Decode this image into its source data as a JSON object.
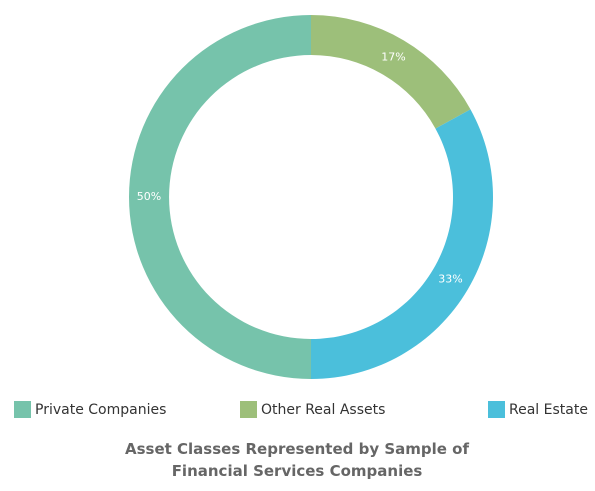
{
  "chart_data": {
    "type": "donut",
    "title": "Asset Classes Represented by Sample of Financial Services Companies",
    "categories": [
      "Private Companies",
      "Other Real Assets",
      "Real Estate"
    ],
    "values": [
      50,
      17,
      33
    ],
    "value_labels": [
      "50%",
      "17%",
      "33%"
    ],
    "colors": [
      "#76c3ab",
      "#9dbf7a",
      "#4bbfdb"
    ],
    "legend": "bottom"
  }
}
